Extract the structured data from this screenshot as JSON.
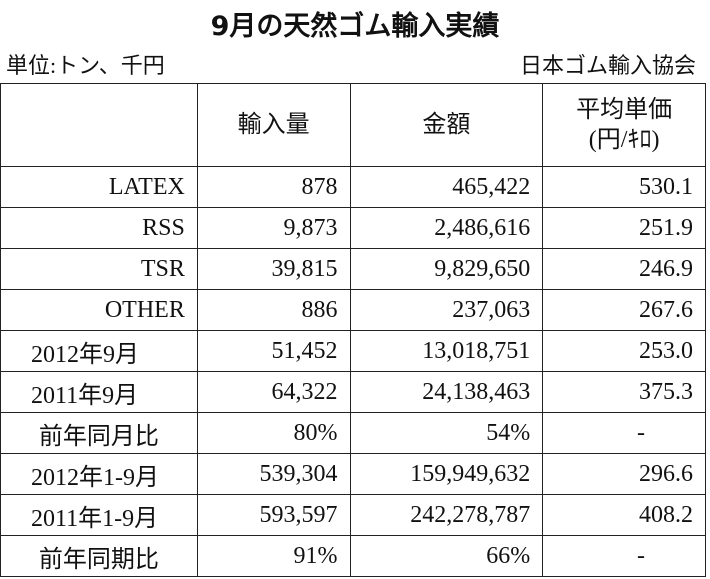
{
  "title": "9月の天然ゴム輸入実績",
  "unit": "単位:トン、千円",
  "source": "日本ゴム輸入協会",
  "table": {
    "header": [
      "輸入量",
      "金額",
      "平均単価"
    ],
    "header_note": "(円/ｷﾛ)",
    "rows": [
      [
        "LATEX",
        "878",
        "465,422",
        "530.1"
      ],
      [
        "RSS",
        "9,873",
        "2,486,616",
        "251.9"
      ],
      [
        "TSR",
        "39,815",
        "9,829,650",
        "246.9"
      ],
      [
        "OTHER",
        "886",
        "237,063",
        "267.6"
      ],
      [
        "2012年9月",
        "51,452",
        "13,018,751",
        "253.0"
      ],
      [
        "2011年9月",
        "64,322",
        "24,138,463",
        "375.3"
      ],
      [
        "前年同月比",
        "80%",
        "54%",
        "-"
      ],
      [
        "2012年1-9月",
        "539,304",
        "159,949,632",
        "296.6"
      ],
      [
        "2011年1-9月",
        "593,597",
        "242,278,787",
        "408.2"
      ],
      [
        "前年同期比",
        "91%",
        "66%",
        "-"
      ]
    ]
  }
}
